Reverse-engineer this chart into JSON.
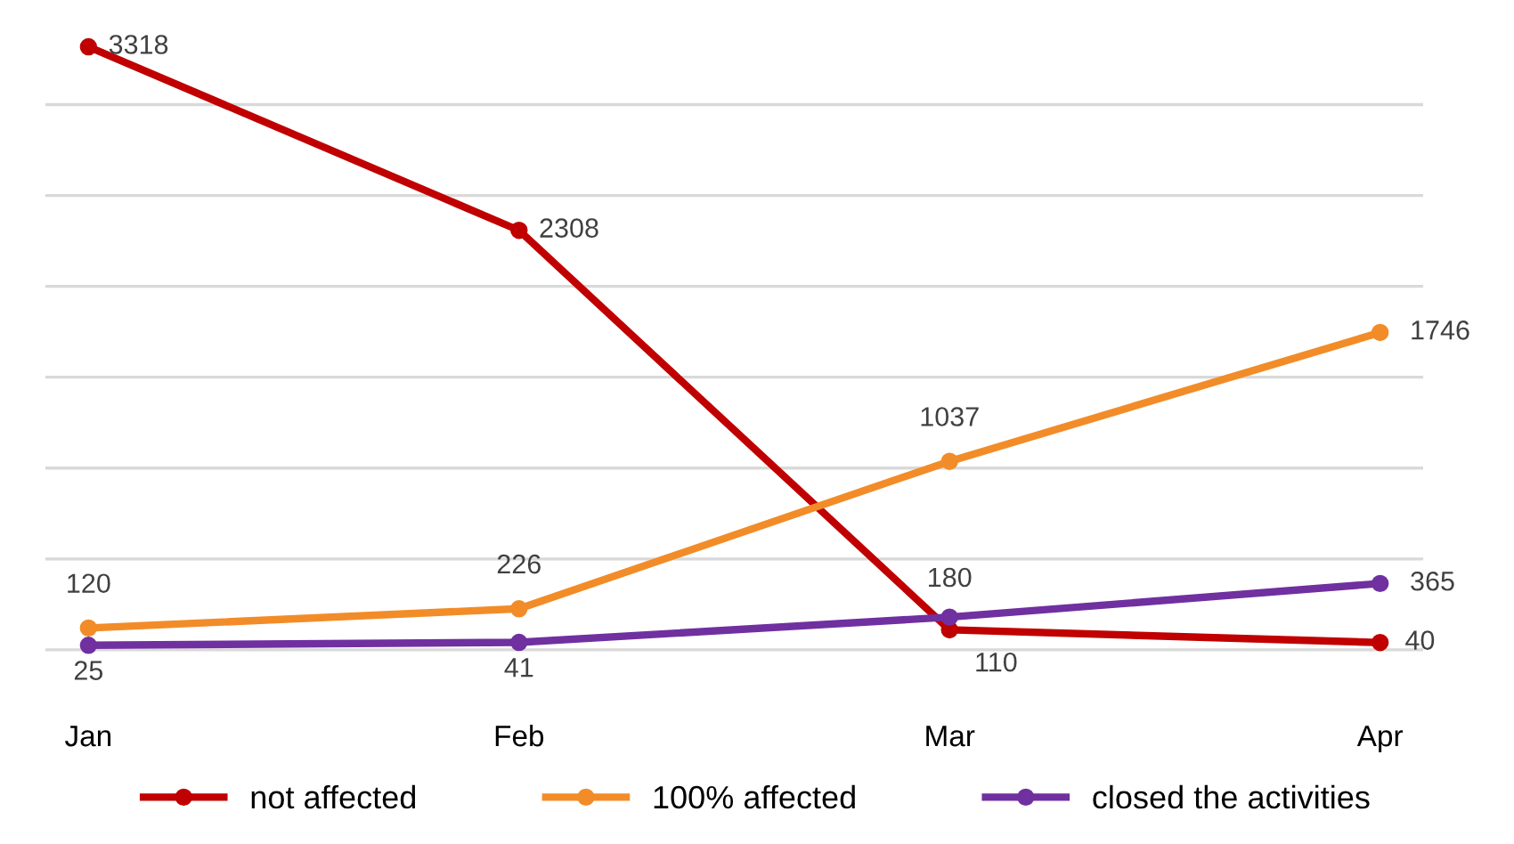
{
  "chart_data": {
    "type": "line",
    "categories": [
      "Jan",
      "Feb",
      "Mar",
      "Apr"
    ],
    "series": [
      {
        "name": "not affected",
        "color": "#c00000",
        "values": [
          3318,
          2308,
          110,
          40
        ]
      },
      {
        "name": "100% affected",
        "color": "#f28c28",
        "values": [
          120,
          226,
          1037,
          1746
        ]
      },
      {
        "name": "closed the activities",
        "color": "#7030a0",
        "values": [
          25,
          41,
          180,
          365
        ]
      }
    ],
    "yticks": [
      {
        "value": 0,
        "label": null
      },
      {
        "value": 500,
        "label": null
      },
      {
        "value": 1000,
        "label": null
      },
      {
        "value": 1500,
        "label": null
      },
      {
        "value": 2000,
        "label": null
      },
      {
        "value": 2500,
        "label": null
      },
      {
        "value": 3000,
        "label": null
      }
    ],
    "grid": "y",
    "legend": "bottom",
    "marker": "circle",
    "line_style": "solid",
    "data_labels": true,
    "tick_labels": "x"
  }
}
